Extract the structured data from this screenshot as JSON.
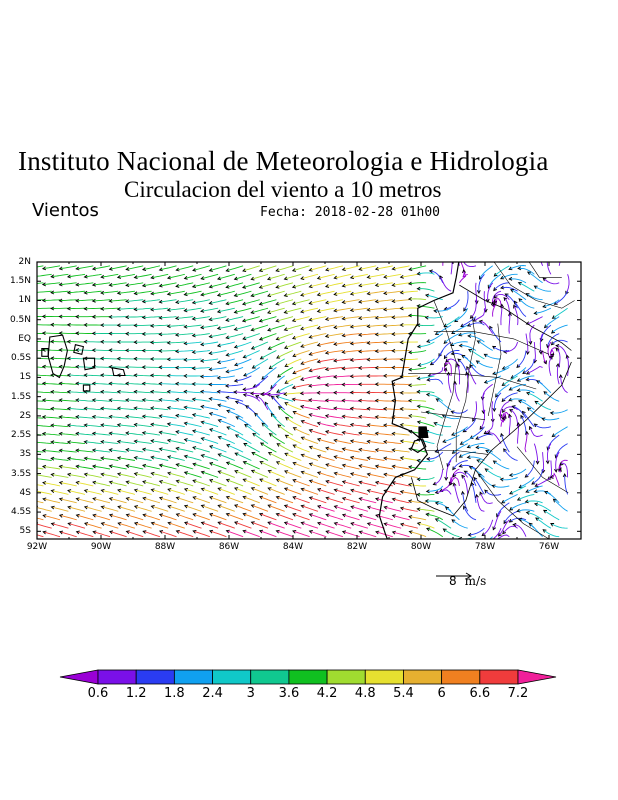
{
  "header": {
    "title": "Instituto Nacional de Meteorologia e Hidrologia",
    "subtitle": "Circulacion del viento a 10 metros",
    "variable": "Vientos",
    "date": "Fecha: 2018-02-28 01h00"
  },
  "map": {
    "lat_labels": [
      "2N",
      "1.5N",
      "1N",
      "0.5N",
      "EQ",
      "0.5S",
      "1S",
      "1.5S",
      "2S",
      "2.5S",
      "3S",
      "3.5S",
      "4S",
      "4.5S",
      "5S"
    ],
    "lon_labels": [
      "92W",
      "90W",
      "88W",
      "86W",
      "84W",
      "82W",
      "80W",
      "78W",
      "76W"
    ],
    "lat_range": [
      -5.2,
      2
    ],
    "lon_range": [
      -92,
      -75
    ],
    "region": "Ecuador and eastern Pacific incl. Galapagos"
  },
  "reference_vector": {
    "value": "8",
    "units": "m/s"
  },
  "colorbar": {
    "labels": [
      "0.6",
      "1.2",
      "1.8",
      "2.4",
      "3",
      "3.6",
      "4.2",
      "4.8",
      "5.4",
      "6",
      "6.6",
      "7.2"
    ],
    "colors": [
      "#9a00d6",
      "#7a10e8",
      "#2a3cf2",
      "#10a0f0",
      "#10c8c8",
      "#10c890",
      "#10c020",
      "#a0dc30",
      "#e6e030",
      "#e6b030",
      "#f08020",
      "#f03c3c",
      "#f0209a"
    ]
  }
}
